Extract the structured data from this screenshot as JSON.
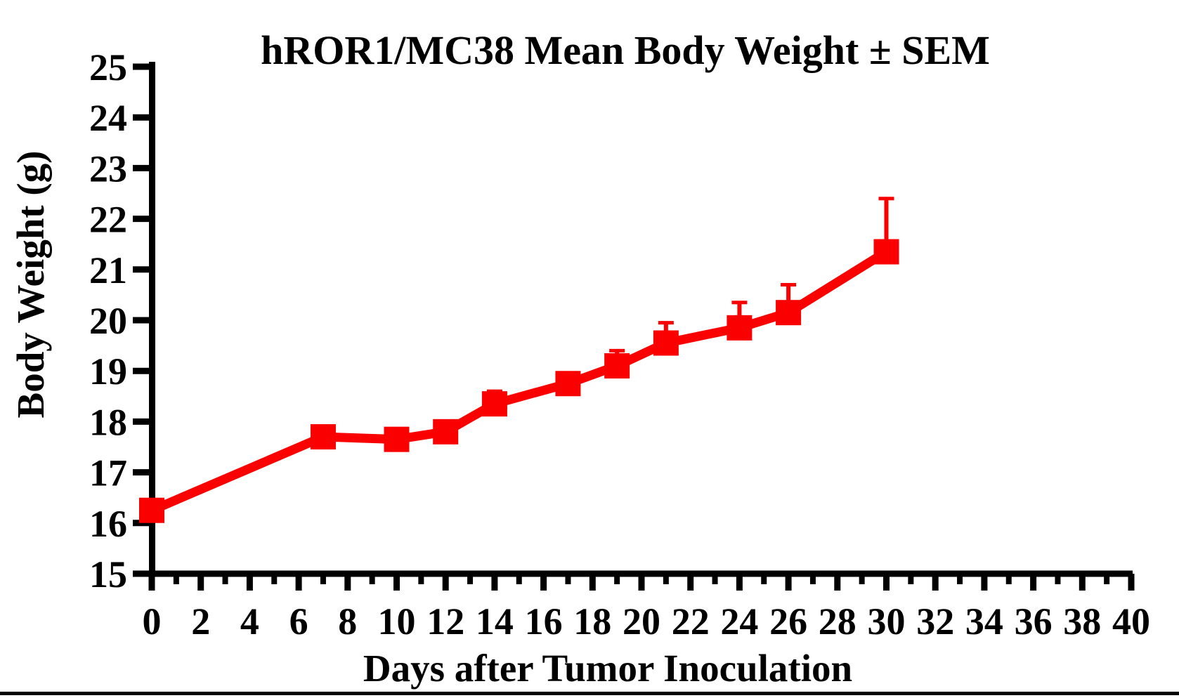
{
  "figure": {
    "background_color": "#ffffff",
    "axis_color": "#000000",
    "series_color": "#fa0000",
    "bottom_border_color": "#000000"
  },
  "chart_data": {
    "type": "line",
    "title": "hROR1/MC38 Mean Body Weight ± SEM",
    "xlabel": "Days after Tumor Inoculation",
    "ylabel": "Body Weight (g)",
    "xlim": [
      0,
      40
    ],
    "ylim": [
      15,
      25
    ],
    "x_ticks": [
      0,
      2,
      4,
      6,
      8,
      10,
      12,
      14,
      16,
      18,
      20,
      22,
      24,
      26,
      28,
      30,
      32,
      34,
      36,
      38,
      40
    ],
    "x_minor_ticks": [
      1,
      3,
      5,
      7,
      9,
      11,
      13,
      15,
      17,
      19,
      21,
      23,
      25,
      27,
      29,
      31,
      33,
      35,
      37,
      39
    ],
    "y_ticks": [
      15,
      16,
      17,
      18,
      19,
      20,
      21,
      22,
      23,
      24,
      25
    ],
    "grid": false,
    "legend": "none",
    "error_bar_style": "upper SEM with cap",
    "series": [
      {
        "name": "hROR1/MC38 mean body weight",
        "color": "#fa0000",
        "marker": "filled-square",
        "points": [
          {
            "day": 0,
            "weight": 16.25,
            "sem_upper": null
          },
          {
            "day": 7,
            "weight": 17.7,
            "sem_upper": null
          },
          {
            "day": 10,
            "weight": 17.65,
            "sem_upper": null
          },
          {
            "day": 12,
            "weight": 17.8,
            "sem_upper": null
          },
          {
            "day": 14,
            "weight": 18.35,
            "sem_upper": 0.25
          },
          {
            "day": 17,
            "weight": 18.75,
            "sem_upper": null
          },
          {
            "day": 19,
            "weight": 19.1,
            "sem_upper": 0.3
          },
          {
            "day": 21,
            "weight": 19.55,
            "sem_upper": 0.4
          },
          {
            "day": 24,
            "weight": 19.85,
            "sem_upper": 0.5
          },
          {
            "day": 26,
            "weight": 20.15,
            "sem_upper": 0.55
          },
          {
            "day": 30,
            "weight": 21.35,
            "sem_upper": 1.05
          }
        ]
      }
    ]
  }
}
